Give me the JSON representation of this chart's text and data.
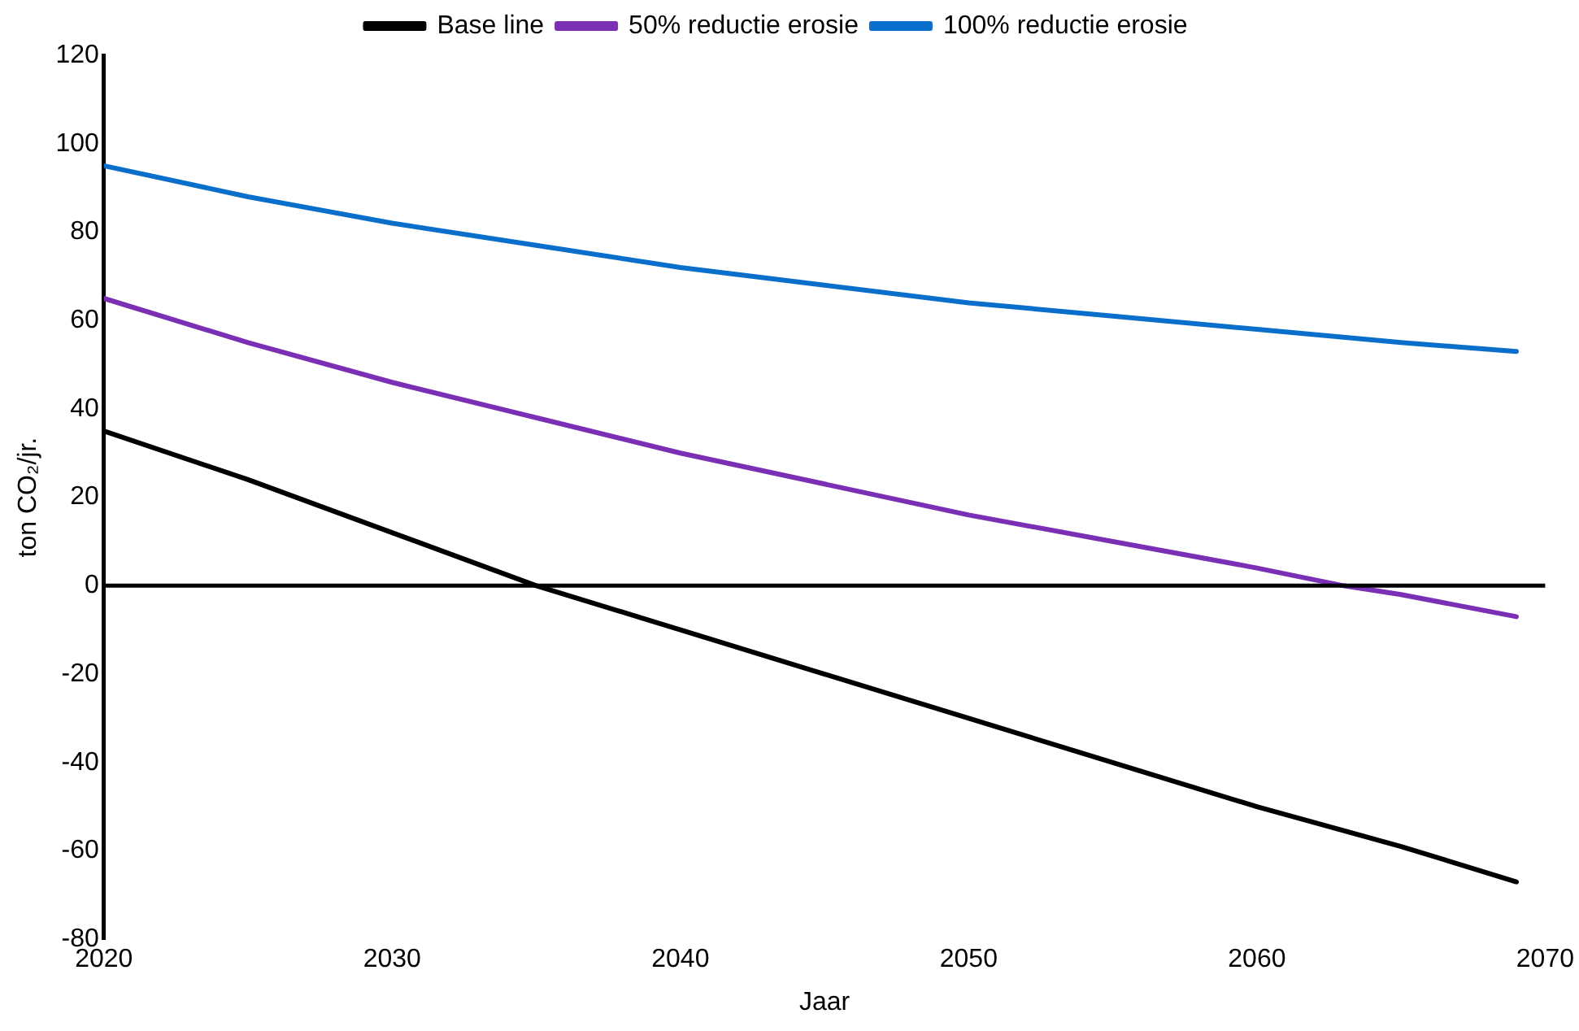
{
  "chart_data": {
    "type": "line",
    "xlabel": "Jaar",
    "ylabel": "ton CO₂/jr.",
    "xlim": [
      2020,
      2070
    ],
    "xticks": [
      2020,
      2030,
      2040,
      2050,
      2060,
      2070
    ],
    "ylim": [
      -80,
      120
    ],
    "yticks": [
      -80,
      -60,
      -40,
      -20,
      0,
      20,
      40,
      60,
      80,
      100,
      120
    ],
    "grid": false,
    "legend": "top",
    "marker": "none",
    "line_style": "solid",
    "ref_lines": [
      {
        "axis": "y",
        "value": 0,
        "color": "#000000"
      }
    ],
    "series": [
      {
        "name": "Base line",
        "color": "#000000",
        "x": [
          2020,
          2025,
          2030,
          2035,
          2040,
          2045,
          2050,
          2055,
          2060,
          2065,
          2069
        ],
        "values": [
          35,
          24,
          12,
          0,
          -10,
          -20,
          -30,
          -40,
          -50,
          -59,
          -67
        ]
      },
      {
        "name": "50% reductie erosie",
        "color": "#7b2fb5",
        "x": [
          2020,
          2025,
          2030,
          2035,
          2040,
          2045,
          2050,
          2055,
          2060,
          2063,
          2065,
          2069
        ],
        "values": [
          65,
          55,
          46,
          38,
          30,
          23,
          16,
          10,
          4,
          0,
          -2,
          -7
        ]
      },
      {
        "name": "100% reductie erosie",
        "color": "#0a6fcb",
        "x": [
          2020,
          2025,
          2030,
          2035,
          2040,
          2045,
          2050,
          2055,
          2060,
          2065,
          2069
        ],
        "values": [
          95,
          88,
          82,
          77,
          72,
          68,
          64,
          61,
          58,
          55,
          53
        ]
      }
    ]
  }
}
